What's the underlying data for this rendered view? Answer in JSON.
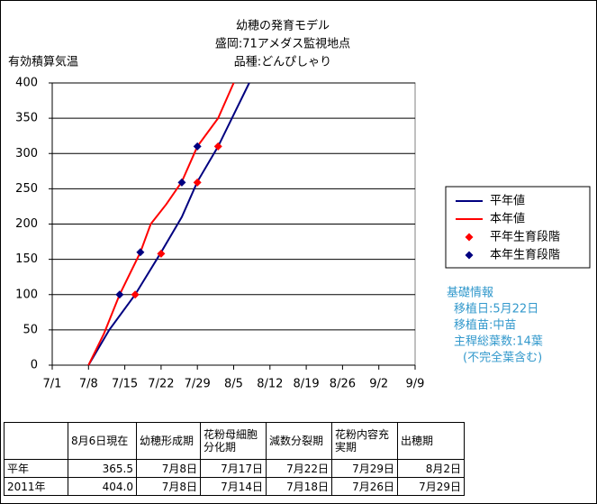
{
  "chart_data": {
    "type": "line",
    "title": [
      "幼穂の発育モデル",
      "盛岡:71アメダス監視地点",
      "品種:どんぴしゃり"
    ],
    "y_label": "有効積算気温",
    "xlim": [
      "7/1",
      "9/9"
    ],
    "xticks": [
      "7/1",
      "7/8",
      "7/15",
      "7/22",
      "7/29",
      "8/5",
      "8/12",
      "8/19",
      "8/26",
      "9/2",
      "9/9"
    ],
    "ylim": [
      0,
      400
    ],
    "yticks": [
      0,
      50,
      100,
      150,
      200,
      250,
      300,
      350,
      400
    ],
    "grid": true,
    "series": [
      {
        "name": "平年値",
        "type": "line",
        "color": "#000080",
        "x": [
          "7/8",
          "7/12",
          "7/17",
          "7/22",
          "7/26",
          "7/29",
          "8/2",
          "8/5",
          "8/8"
        ],
        "values": [
          0,
          50,
          100,
          160,
          210,
          260,
          310,
          355,
          400
        ]
      },
      {
        "name": "本年値",
        "type": "line",
        "color": "#ff0000",
        "x": [
          "7/8",
          "7/11",
          "7/14",
          "7/18",
          "7/20",
          "7/23",
          "7/26",
          "7/29",
          "8/2",
          "8/5"
        ],
        "values": [
          0,
          45,
          100,
          160,
          200,
          228,
          260,
          310,
          350,
          400
        ]
      },
      {
        "name": "平年生育段階",
        "type": "scatter",
        "color": "#ff0000",
        "x": [
          "7/17",
          "7/22",
          "7/29",
          "8/2"
        ],
        "values": [
          100,
          158,
          259,
          310
        ]
      },
      {
        "name": "本年生育段階",
        "type": "scatter",
        "color": "#000080",
        "x": [
          "7/14",
          "7/18",
          "7/26",
          "7/29"
        ],
        "values": [
          100,
          160,
          259,
          310
        ]
      }
    ]
  },
  "info": [
    "基礎情報",
    "移植日:5月22日",
    "移植苗:中苗",
    "主稈総葉数:14葉",
    "(不完全葉含む)"
  ],
  "table": {
    "header": [
      "8月6日現在",
      "幼穂形成期",
      "花粉母細胞分化期",
      "減数分裂期",
      "花粉内容充実期",
      "出穂期"
    ],
    "rows": [
      [
        "平年",
        "365.5",
        "7月8日",
        "7月17日",
        "7月22日",
        "7月29日",
        "8月2日"
      ],
      [
        "2011年",
        "404.0",
        "7月8日",
        "7月14日",
        "7月18日",
        "7月26日",
        "7月29日"
      ]
    ]
  }
}
